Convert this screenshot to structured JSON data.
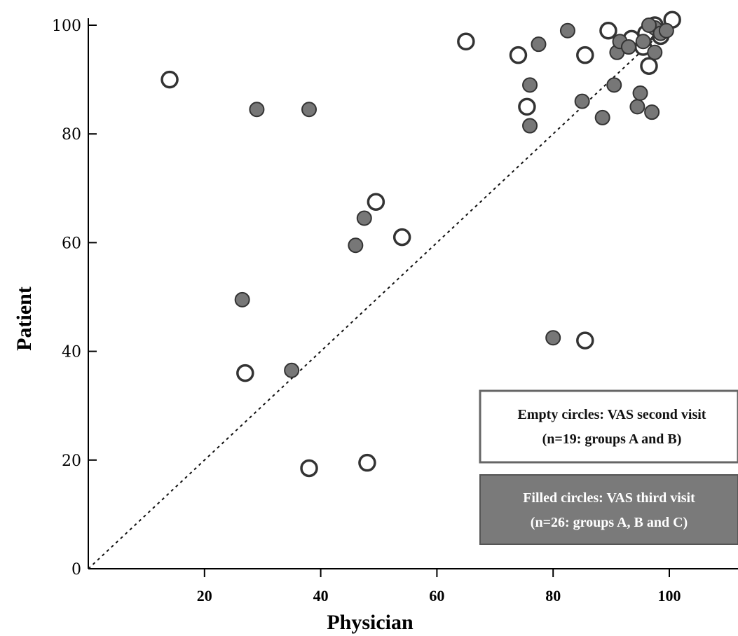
{
  "chart_data": {
    "type": "scatter",
    "xlabel": "Physician",
    "ylabel": "Patient",
    "xlim": [
      0,
      112
    ],
    "ylim": [
      0,
      102
    ],
    "x_ticks": [
      "20",
      "40",
      "60",
      "80",
      "100"
    ],
    "y_ticks": [
      "0",
      "20",
      "40",
      "60",
      "80",
      "100"
    ],
    "reference_line": "dashed y = x",
    "legend": {
      "placement": "bottom-right",
      "empty": [
        "Empty circles: VAS second visit",
        "(n=19: groups A and B)"
      ],
      "filled": [
        "Filled circles: VAS third visit",
        "(n=26: groups A, B and C)"
      ]
    },
    "series": [
      {
        "style": "empty",
        "color": "#ffffff",
        "stroke": "#333333",
        "points": [
          [
            14,
            90
          ],
          [
            27,
            36
          ],
          [
            38,
            18.5
          ],
          [
            48,
            19.5
          ],
          [
            49.5,
            67.5
          ],
          [
            54,
            61
          ],
          [
            65,
            97
          ],
          [
            74,
            94.5
          ],
          [
            75.5,
            85
          ],
          [
            85.5,
            94.5
          ],
          [
            85.5,
            42
          ],
          [
            89.5,
            99
          ],
          [
            93.5,
            97.5
          ],
          [
            95.5,
            96
          ],
          [
            96.5,
            92.5
          ],
          [
            100.5,
            101
          ],
          [
            98.5,
            98
          ],
          [
            96,
            98.5
          ],
          [
            97.5,
            100
          ]
        ]
      },
      {
        "style": "filled",
        "color": "#777777",
        "stroke": "#333333",
        "points": [
          [
            26.5,
            49.5
          ],
          [
            29,
            84.5
          ],
          [
            35,
            36.5
          ],
          [
            38,
            84.5
          ],
          [
            46,
            59.5
          ],
          [
            47.5,
            64.5
          ],
          [
            76,
            81.5
          ],
          [
            76,
            89
          ],
          [
            77.5,
            96.5
          ],
          [
            80,
            42.5
          ],
          [
            82.5,
            99
          ],
          [
            85,
            86
          ],
          [
            88.5,
            83
          ],
          [
            90.5,
            89
          ],
          [
            91,
            95
          ],
          [
            91.5,
            97
          ],
          [
            94.5,
            85
          ],
          [
            95,
            87.5
          ],
          [
            97,
            84
          ],
          [
            97.5,
            95
          ],
          [
            97.5,
            99.5
          ],
          [
            98.5,
            98.5
          ],
          [
            99.5,
            99
          ],
          [
            95.5,
            97
          ],
          [
            93,
            96
          ],
          [
            96.5,
            100
          ]
        ]
      }
    ]
  }
}
